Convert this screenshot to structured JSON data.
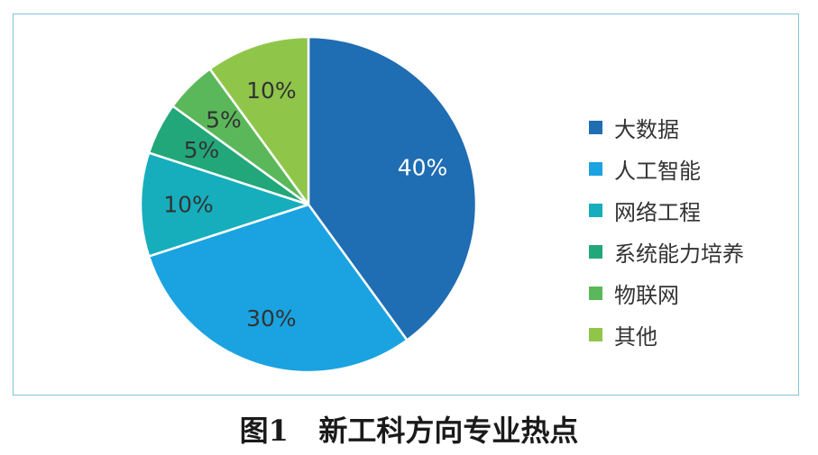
{
  "chart_data": {
    "type": "pie",
    "caption": "图1   新工科方向专业热点",
    "slices": [
      {
        "label": "大数据",
        "value": 40,
        "display": "40%",
        "color": "#1f6db3",
        "label_color": "#ffffff"
      },
      {
        "label": "人工智能",
        "value": 30,
        "display": "30%",
        "color": "#1aa3e0",
        "label_color": "#333333"
      },
      {
        "label": "网络工程",
        "value": 10,
        "display": "10%",
        "color": "#16aebd",
        "label_color": "#333333"
      },
      {
        "label": "系统能力培养",
        "value": 5,
        "display": "5%",
        "color": "#22a77a",
        "label_color": "#333333"
      },
      {
        "label": "物联网",
        "value": 5,
        "display": "5%",
        "color": "#5bb85a",
        "label_color": "#333333"
      },
      {
        "label": "其他",
        "value": 10,
        "display": "10%",
        "color": "#8fc64a",
        "label_color": "#333333"
      }
    ],
    "start_direction": "top",
    "order": "clockwise",
    "legend_position": "right"
  }
}
